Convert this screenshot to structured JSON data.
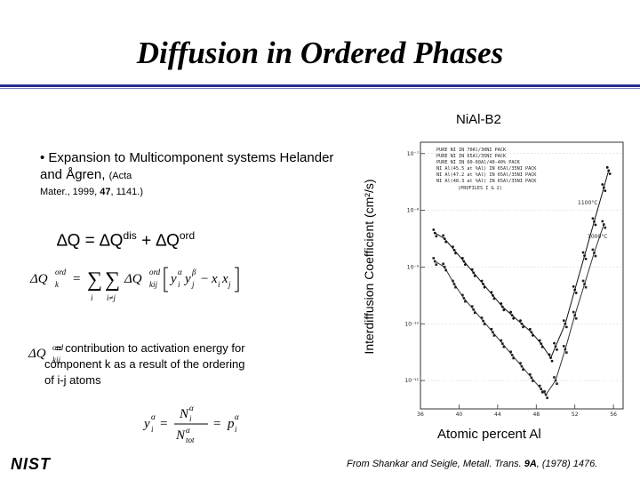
{
  "slide": {
    "title": "Diffusion in Ordered Phases",
    "bullet": "• Expansion to Multicomponent systems Helander and Ågren,",
    "bullet_cite_journal": "(Acta",
    "bullet_cite_rest_prefix": "Mater., 1999, ",
    "bullet_cite_volume": "47",
    "bullet_cite_pages": ", 1141.)",
    "deltaQ": {
      "lhs": "∆Q = ∆Q",
      "sup1": "dis",
      "plus": " + ∆Q",
      "sup2": "ord"
    },
    "contribution_line1": "= contribution to activation energy  for",
    "contribution_line2": "component k as a result of the ordering",
    "contribution_line3": "of i-j atoms",
    "logo_text": "NIST"
  },
  "figure": {
    "label": "NiAl-B2",
    "ylabel": "Interdiffusion Coefficient (cm²/s)",
    "xlabel": "Atomic percent Al",
    "source_prefix": "From Shankar and Seigle, Metall. Trans. ",
    "source_volume": "9A",
    "source_suffix": ", (1978) 1476.",
    "legend": [
      "PURE NI  IN 70Al/30NI PACK",
      "PURE NI  IN 65Al/35NI PACK",
      "PURE NI  IN 60-60Al/40-40% PACK",
      "NI Al(45.5 at %Al) IN 65Al/35NI PACK",
      "NI Al(47.2 at %Al) IN 65Al/35NI PACK",
      "NI Al(48.3 at %Al) IN 65Al/35NI PACK",
      "(PROFILES I & 2)"
    ],
    "temp1": "1100°C",
    "temp2": "1000°C",
    "y_ticks": [
      "10⁻⁷",
      "10⁻⁸",
      "10⁻⁹",
      "10⁻¹⁰",
      "10⁻¹¹"
    ],
    "x_ticks": [
      "36",
      "40",
      "44",
      "48",
      "52",
      "56"
    ]
  },
  "chart_data": {
    "type": "scatter",
    "title": "NiAl-B2",
    "xlabel": "Atomic percent Al",
    "ylabel": "Interdiffusion Coefficient (cm²/s)",
    "xlim": [
      36,
      57
    ],
    "ylim": [
      -11.5,
      -6.8
    ],
    "y_scale": "log10",
    "series": [
      {
        "name": "1100°C",
        "x": [
          37.5,
          38.5,
          39.5,
          40.5,
          41.5,
          42.5,
          43.5,
          44.5,
          45.5,
          46.5,
          47.5,
          48.5,
          49.5,
          50.0,
          51.0,
          52.0,
          53.0,
          54.0,
          55.0,
          55.5
        ],
        "y": [
          -8.4,
          -8.5,
          -8.7,
          -8.9,
          -9.1,
          -9.3,
          -9.5,
          -9.7,
          -9.85,
          -10.0,
          -10.15,
          -10.35,
          -10.6,
          -10.4,
          -10.0,
          -9.4,
          -8.8,
          -8.2,
          -7.6,
          -7.3
        ]
      },
      {
        "name": "1000°C",
        "x": [
          37.5,
          38.5,
          39.5,
          40.5,
          41.5,
          42.5,
          43.5,
          44.5,
          45.5,
          46.5,
          47.5,
          48.5,
          49.0,
          50.0,
          51.0,
          52.0,
          53.0,
          54.0,
          55.0
        ],
        "y": [
          -8.9,
          -9.0,
          -9.3,
          -9.55,
          -9.75,
          -9.95,
          -10.15,
          -10.35,
          -10.55,
          -10.75,
          -10.95,
          -11.15,
          -11.25,
          -11.0,
          -10.45,
          -9.85,
          -9.3,
          -8.75,
          -8.25
        ]
      }
    ]
  }
}
